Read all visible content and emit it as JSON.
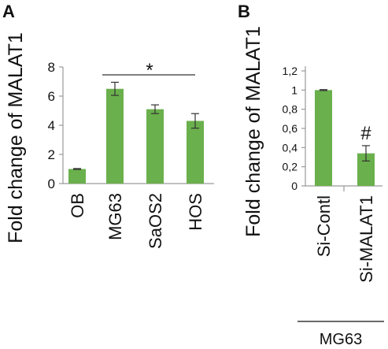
{
  "chart_data": [
    {
      "panel": "A",
      "type": "bar",
      "ylabel": "Fold change of MALAT1",
      "categories": [
        "OB",
        "MG63",
        "SaOS2",
        "HOS"
      ],
      "values": [
        1.0,
        6.5,
        5.1,
        4.3
      ],
      "errors": [
        0.03,
        0.45,
        0.3,
        0.5
      ],
      "ylim": [
        0,
        8
      ],
      "yticks": [
        "0",
        "2",
        "4",
        "6",
        "8"
      ],
      "annotation": "*",
      "bar_color": "#6ab04c",
      "grid": false
    },
    {
      "panel": "B",
      "type": "bar",
      "ylabel": "Fold change of MALAT1",
      "categories": [
        "Si-Contl",
        "Si-MALAT1"
      ],
      "values": [
        1.0,
        0.34
      ],
      "errors": [
        0.005,
        0.08
      ],
      "ylim": [
        0,
        1.2
      ],
      "yticks": [
        "0",
        "0,2",
        "0,4",
        "0,6",
        "0,8",
        "1",
        "1,2"
      ],
      "annotation": "#",
      "group_label": "MG63",
      "bar_color": "#6ab04c",
      "grid": false
    }
  ]
}
